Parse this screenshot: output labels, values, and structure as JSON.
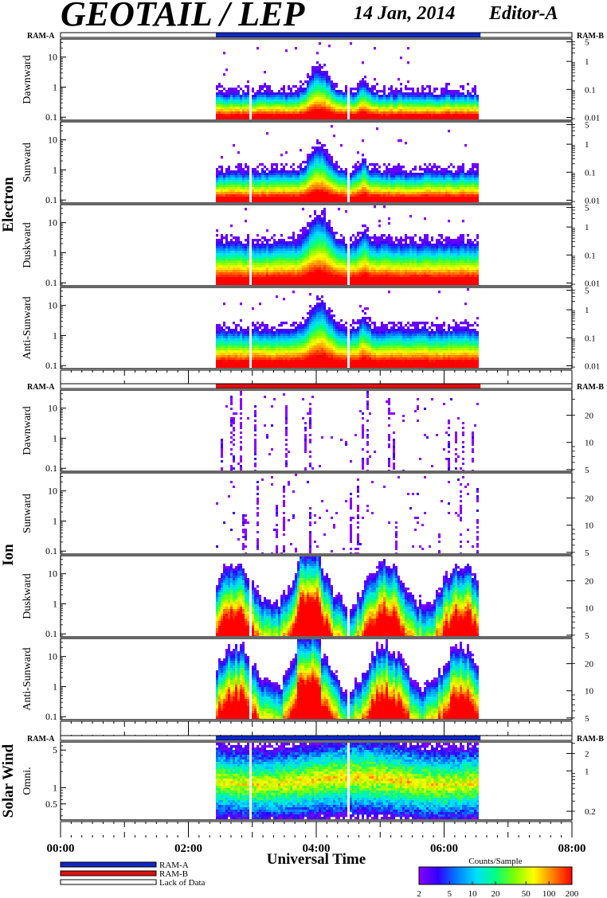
{
  "header": {
    "title": "GEOTAIL / LEP",
    "date": "14 Jan, 2014",
    "editor": "Editor-A"
  },
  "ram_labels": {
    "left": "RAM-A",
    "right": "RAM-B"
  },
  "colors": {
    "ram_a": "#1028c8",
    "ram_b": "#e01010",
    "lack_of_data": "#ffffff"
  },
  "chart_data": {
    "type": "heatmap",
    "xlabel": "Universal Time",
    "x_ticks": [
      "00:00",
      "02:00",
      "04:00",
      "06:00",
      "08:00"
    ],
    "x_range_hours": [
      0,
      8
    ],
    "data_interval_hours": [
      2.43,
      6.57
    ],
    "groups": [
      {
        "name": "Electron",
        "ram_bar": "RAM-A",
        "panels": [
          {
            "name": "Dawnward",
            "left_ticks": [
              "10",
              "1",
              "0.1"
            ],
            "left_log": [
              -1.1,
              1.6
            ],
            "right_ticks": [
              "5",
              "1",
              "0.1",
              "0.01"
            ],
            "right_log": [
              -2.1,
              0.8
            ],
            "activity": "low",
            "background_level": 0.35
          },
          {
            "name": "Sunward",
            "left_ticks": [
              "10",
              "1",
              "0.1"
            ],
            "left_log": [
              -1.1,
              1.6
            ],
            "right_ticks": [
              "5",
              "1",
              "0.1",
              "0.01"
            ],
            "right_log": [
              -2.1,
              0.8
            ],
            "activity": "low",
            "background_level": 0.4
          },
          {
            "name": "Duskward",
            "left_ticks": [
              "10",
              "1",
              "0.1"
            ],
            "left_log": [
              -1.1,
              1.6
            ],
            "right_ticks": [
              "5",
              "1",
              "0.1",
              "0.01"
            ],
            "right_log": [
              -2.1,
              0.8
            ],
            "activity": "medium",
            "background_level": 0.55
          },
          {
            "name": "Anti-Sunward",
            "left_ticks": [
              "10",
              "1",
              "0.1"
            ],
            "left_log": [
              -1.1,
              1.6
            ],
            "right_ticks": [
              "5",
              "1",
              "0.1",
              "0.01"
            ],
            "right_log": [
              -2.1,
              0.8
            ],
            "activity": "medium",
            "background_level": 0.5
          }
        ]
      },
      {
        "name": "Ion",
        "ram_bar": "RAM-B",
        "panels": [
          {
            "name": "Dawnward",
            "left_ticks": [
              "10",
              "1",
              "0.1"
            ],
            "left_log": [
              -1.1,
              1.6
            ],
            "right_ticks": [
              "20",
              "10",
              "5"
            ],
            "right_log": [
              0.68,
              1.58
            ],
            "activity": "sparse",
            "background_level": 0.1
          },
          {
            "name": "Sunward",
            "left_ticks": [
              "10",
              "1",
              "0.1"
            ],
            "left_log": [
              -1.1,
              1.6
            ],
            "right_ticks": [
              "20",
              "10",
              "5"
            ],
            "right_log": [
              0.68,
              1.58
            ],
            "activity": "sparse",
            "background_level": 0.15
          },
          {
            "name": "Duskward",
            "left_ticks": [
              "10",
              "1",
              "0.1"
            ],
            "left_log": [
              -1.1,
              1.6
            ],
            "right_ticks": [
              "20",
              "10",
              "5"
            ],
            "right_log": [
              0.68,
              1.58
            ],
            "activity": "intense",
            "background_level": 0.85
          },
          {
            "name": "Anti-Sunward",
            "left_ticks": [
              "10",
              "1",
              "0.1"
            ],
            "left_log": [
              -1.1,
              1.6
            ],
            "right_ticks": [
              "20",
              "10",
              "5"
            ],
            "right_log": [
              0.68,
              1.58
            ],
            "activity": "intense",
            "background_level": 0.85
          }
        ]
      },
      {
        "name": "Solar Wind",
        "ram_bar": "RAM-A",
        "panels": [
          {
            "name": "Omni.",
            "left_ticks": [
              "5",
              "1",
              "0.5"
            ],
            "left_log": [
              -0.6,
              0.85
            ],
            "right_ticks": [
              "2",
              "1",
              "0.2"
            ],
            "right_log": [
              -0.85,
              0.5
            ],
            "activity": "solarwind",
            "background_level": 0.5
          }
        ]
      }
    ],
    "legend": [
      {
        "label": "RAM-A",
        "color": "#1028c8"
      },
      {
        "label": "RAM-B",
        "color": "#e01010"
      },
      {
        "label": "Lack of Data",
        "color": "#ffffff"
      }
    ],
    "colorbar": {
      "title": "Counts/Sample",
      "ticks": [
        "2",
        "5",
        "10",
        "20",
        "50",
        "100",
        "200"
      ],
      "range": [
        2,
        200
      ],
      "scale": "log",
      "colors": [
        "#8b00ff",
        "#3000ff",
        "#0080ff",
        "#00e0ff",
        "#00ff80",
        "#80ff00",
        "#ffff00",
        "#ff8000",
        "#ff0000"
      ]
    }
  }
}
